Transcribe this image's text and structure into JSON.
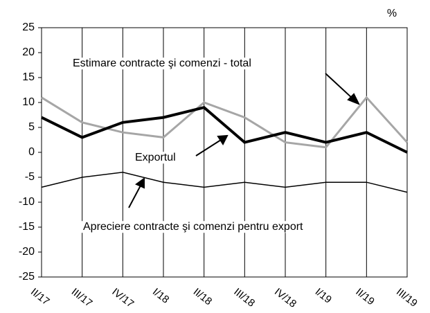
{
  "chart_data": {
    "type": "line",
    "unit_label": "%",
    "categories": [
      "II/17",
      "III/17",
      "IV/17",
      "I/18",
      "II/18",
      "III/18",
      "IV/18",
      "I/19",
      "II/19",
      "III/19"
    ],
    "series": [
      {
        "name": "Estimare contracte şi comenzi - total",
        "color": "#a6a6a6",
        "width": 3,
        "values": [
          11,
          6,
          4,
          3,
          10,
          7,
          2,
          1,
          11,
          2
        ]
      },
      {
        "name": "Exportul",
        "color": "#000000",
        "width": 4,
        "values": [
          7,
          3,
          6,
          7,
          9,
          2,
          4,
          2,
          4,
          0
        ]
      },
      {
        "name": "Apreciere contracte şi comenzi pentru export",
        "color": "#000000",
        "width": 1.5,
        "values": [
          -7,
          -5,
          -4,
          -6,
          -7,
          -6,
          -7,
          -6,
          -6,
          -8
        ]
      }
    ],
    "ylim": [
      -25,
      25
    ],
    "yticks": [
      25,
      20,
      15,
      10,
      5,
      0,
      -5,
      -10,
      -15,
      -20,
      -25
    ],
    "xgrid": true
  }
}
